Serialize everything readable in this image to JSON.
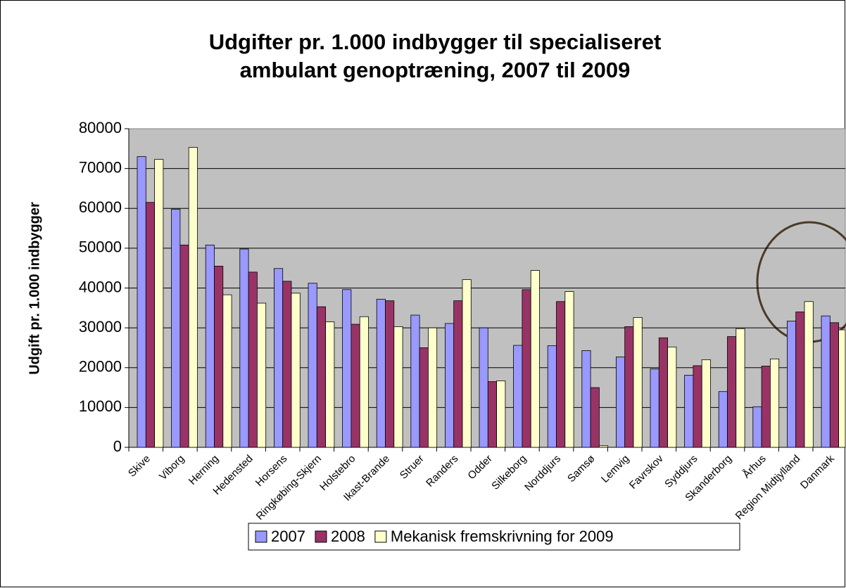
{
  "chart_data": {
    "type": "bar",
    "title": [
      "Udgifter pr. 1.000 indbygger til specialiseret",
      "ambulant genoptræning, 2007 til 2009"
    ],
    "y_label": "Udgift pr. 1.000 indbygger",
    "categories": [
      "Skive",
      "Viborg",
      "Herning",
      "Hedensted",
      "Horsens",
      "Ringkøbing-Skjern",
      "Holstebro",
      "Ikast-Brande",
      "Struer",
      "Randers",
      "Odder",
      "Silkeborg",
      "Norddjurs",
      "Samsø",
      "Lemvig",
      "Favrskov",
      "Syddjurs",
      "Skanderborg",
      "Århus",
      "Region Midtjylland",
      "Danmark"
    ],
    "series": [
      {
        "name": "2007",
        "color": "#9999ff",
        "values": [
          73000,
          59800,
          50800,
          49800,
          44900,
          41200,
          39600,
          37200,
          33200,
          31100,
          30000,
          25600,
          25500,
          24300,
          22700,
          19700,
          18100,
          14000,
          10200,
          31700,
          33000
        ]
      },
      {
        "name": "2008",
        "color": "#993366",
        "values": [
          61500,
          50800,
          45500,
          44000,
          41700,
          35300,
          30900,
          36800,
          25000,
          36800,
          16500,
          39600,
          36600,
          15000,
          30300,
          27500,
          20500,
          27800,
          20400,
          34000,
          31300
        ]
      },
      {
        "name": "Mekanisk fremskrivning for 2009",
        "color": "#ffffcc",
        "values": [
          72300,
          75300,
          38300,
          36200,
          38700,
          31500,
          32800,
          30300,
          30000,
          42100,
          16700,
          44400,
          39100,
          400,
          32600,
          25200,
          22000,
          29800,
          22200,
          36600,
          29500
        ]
      }
    ],
    "ylim": [
      0,
      80000
    ],
    "yticks": [
      0,
      10000,
      20000,
      30000,
      40000,
      50000,
      60000,
      70000,
      80000
    ],
    "grid": true,
    "legend": "bottom"
  }
}
